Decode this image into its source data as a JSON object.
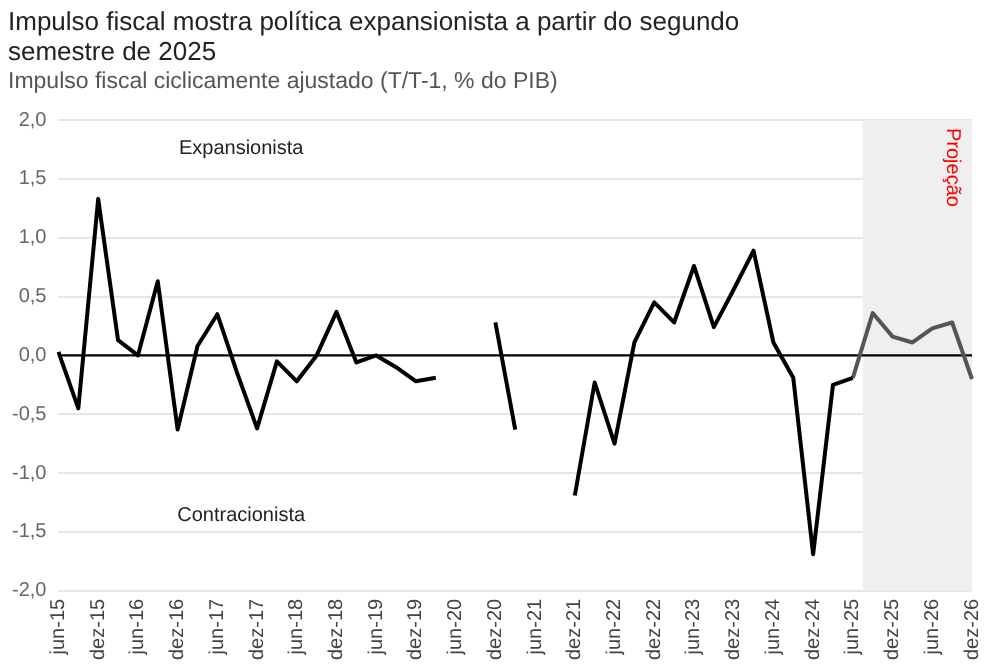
{
  "chart_data": {
    "type": "line",
    "title": "Impulso fiscal mostra política expansionista a partir do segundo semestre de 2025",
    "subtitle": "Impulso fiscal ciclicamente ajustado (T/T-1, % do PIB)",
    "categories": [
      "jun-15",
      null,
      "dez-15",
      null,
      "jun-16",
      null,
      "dez-16",
      null,
      "jun-17",
      null,
      "dez-17",
      null,
      "jun-18",
      null,
      "dez-18",
      null,
      "jun-19",
      null,
      "dez-19",
      null,
      "jun-20",
      null,
      "dez-20",
      null,
      "jun-21",
      null,
      "dez-21",
      null,
      "jun-22",
      null,
      "dez-22",
      null,
      "jun-23",
      null,
      "dez-23",
      null,
      "jun-24",
      null,
      "dez-24",
      null,
      "jun-25",
      null,
      "dez-25",
      null,
      "jun-26",
      null,
      "dez-26"
    ],
    "series": [
      {
        "color": "#000000",
        "values": [
          0.03,
          -0.45,
          1.33,
          0.13,
          0.0,
          0.63,
          -0.63,
          0.08,
          0.35,
          -0.15,
          -0.62,
          -0.05,
          -0.22,
          0.0,
          0.37,
          -0.06,
          0.0,
          -0.1,
          -0.22,
          -0.19,
          null,
          null,
          0.28,
          -0.63,
          null,
          null,
          -1.19,
          -0.23,
          -0.75,
          0.11,
          0.45,
          0.28,
          0.76,
          0.24,
          0.56,
          0.89,
          0.11,
          -0.19,
          -1.69,
          -0.25,
          -0.19,
          null,
          null,
          null,
          null,
          null,
          null
        ]
      },
      {
        "color": "#555555",
        "values": [
          null,
          null,
          null,
          null,
          null,
          null,
          null,
          null,
          null,
          null,
          null,
          null,
          null,
          null,
          null,
          null,
          null,
          null,
          null,
          null,
          null,
          null,
          null,
          null,
          null,
          null,
          null,
          null,
          null,
          null,
          null,
          null,
          null,
          null,
          null,
          null,
          null,
          null,
          null,
          null,
          -0.19,
          0.36,
          0.16,
          0.11,
          0.23,
          0.28,
          -0.2
        ]
      }
    ],
    "ylim": [
      -2,
      2
    ],
    "yticks": [
      {
        "value": -2,
        "label": "-2,0"
      },
      {
        "value": -1.5,
        "label": "-1,5"
      },
      {
        "value": -1,
        "label": "-1,0"
      },
      {
        "value": -0.5,
        "label": "-0,5"
      },
      {
        "value": 0,
        "label": "0,0"
      },
      {
        "value": 0.5,
        "label": "0,5"
      },
      {
        "value": 1,
        "label": "1,0"
      },
      {
        "value": 1.5,
        "label": "1,5"
      },
      {
        "value": 2,
        "label": "2,0"
      }
    ],
    "grid": "y",
    "legend": false,
    "marker": "none",
    "line_style": "solid",
    "ref_lines": [
      {
        "axis": "y",
        "value": 0,
        "color": "#000000"
      }
    ],
    "bands": [
      {
        "axis": "x",
        "from": "jun-25",
        "to": "dez-26",
        "label": "Projeção",
        "color": "#efefef"
      }
    ],
    "annotations": [
      "Expansionista",
      "Contracionista"
    ]
  }
}
